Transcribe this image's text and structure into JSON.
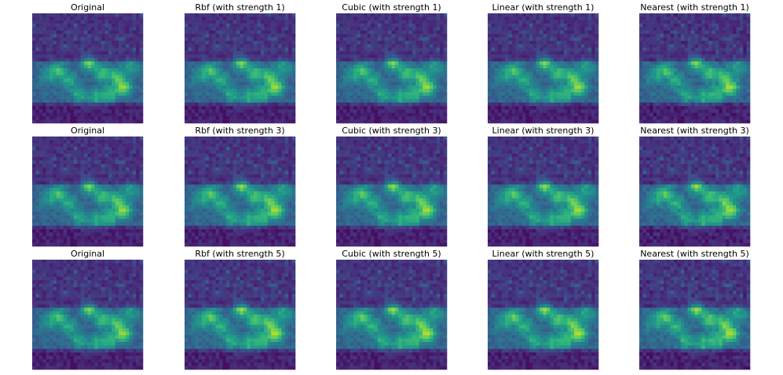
{
  "panels": [
    [
      "Original",
      "Rbf (with strength 1)",
      "Cubic (with strength 1)",
      "Linear (with strength 1)",
      "Nearest (with strength 1)"
    ],
    [
      "Original",
      "Rbf (with strength 3)",
      "Cubic (with strength 3)",
      "Linear (with strength 3)",
      "Nearest (with strength 3)"
    ],
    [
      "Original",
      "Rbf (with strength 5)",
      "Cubic (with strength 5)",
      "Linear (with strength 5)",
      "Nearest (with strength 5)"
    ]
  ]
}
